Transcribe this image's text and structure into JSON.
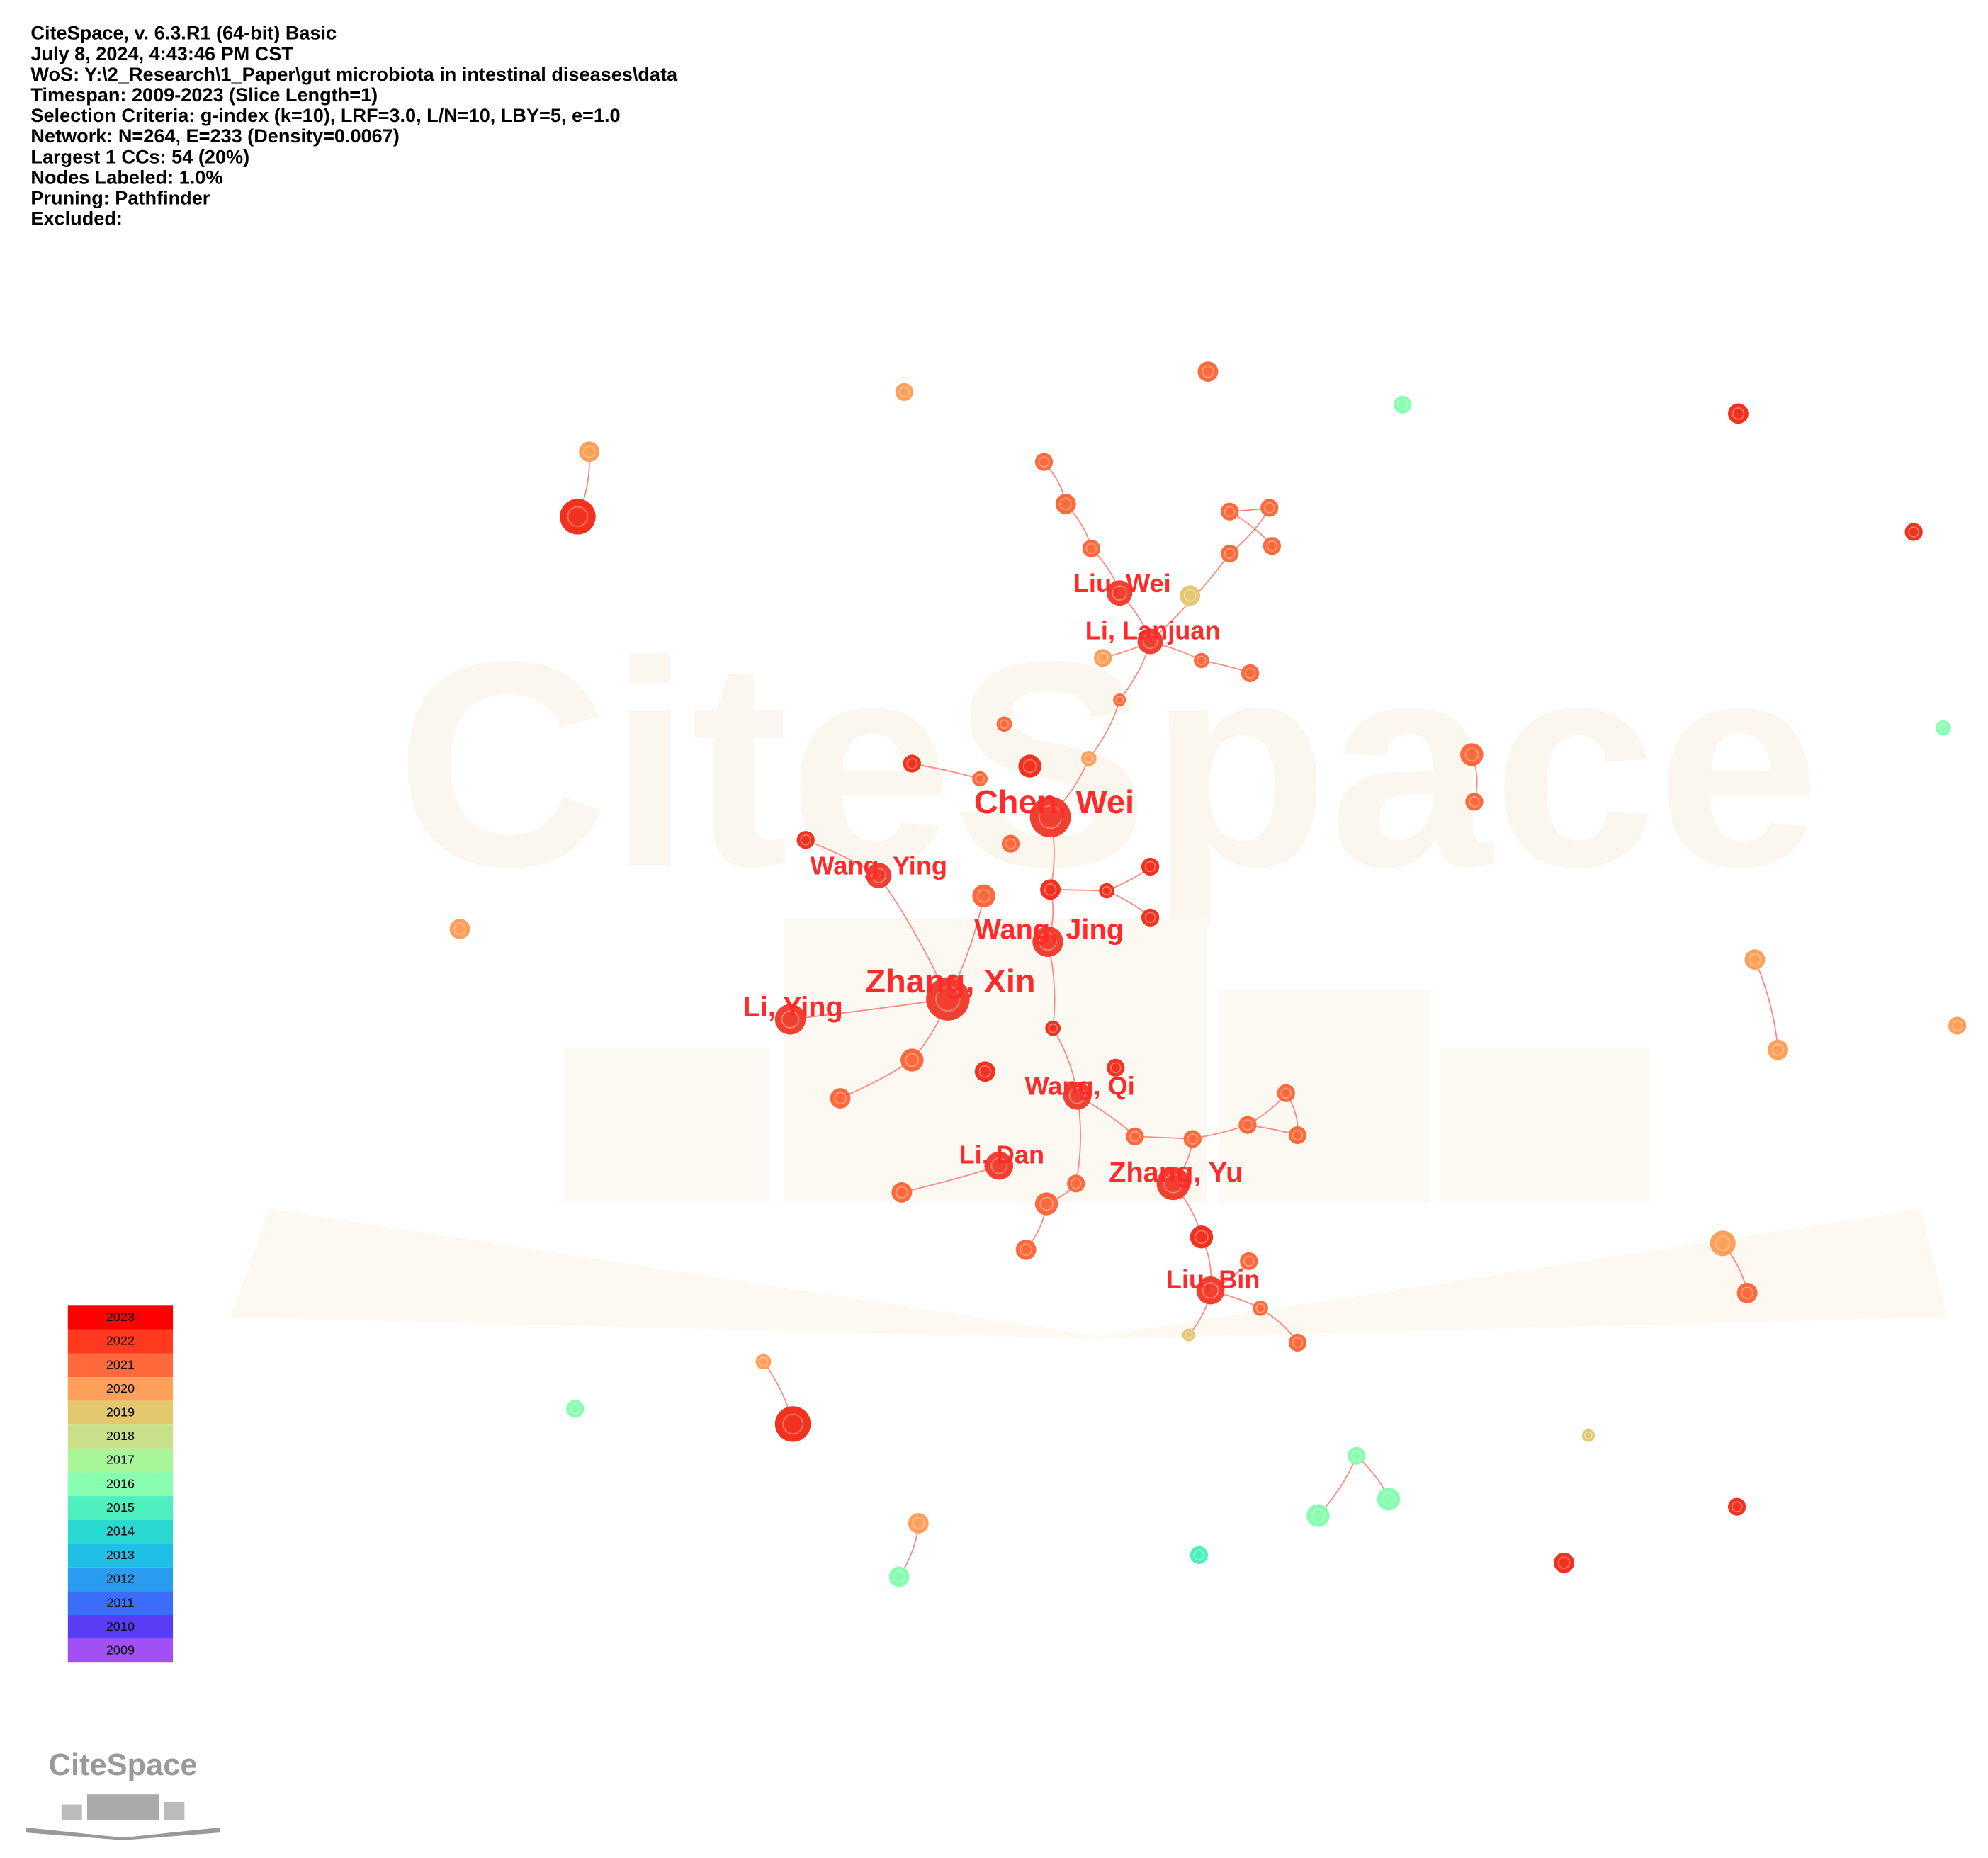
{
  "header": {
    "lines": [
      "CiteSpace, v. 6.3.R1 (64-bit) Basic",
      "July 8, 2024, 4:43:46 PM CST",
      "WoS: Y:\\2_Research\\1_Paper\\gut microbiota in intestinal diseases\\data",
      "Timespan: 2009-2023 (Slice Length=1)",
      "Selection Criteria: g-index (k=10), LRF=3.0, L/N=10, LBY=5, e=1.0",
      "Network: N=264, E=233 (Density=0.0067)",
      "Largest 1 CCs: 54 (20%)",
      "Nodes Labeled: 1.0%",
      "Pruning: Pathfinder",
      "Excluded:"
    ]
  },
  "watermark": "CiteSpace",
  "nodes": [
    {
      "label": "Liu, Wei"
    },
    {
      "label": "Li, Lanjuan"
    },
    {
      "label": "Chen, Wei"
    },
    {
      "label": "Wang, Ying"
    },
    {
      "label": "Wang, Jing"
    },
    {
      "label": "Zhang, Xin"
    },
    {
      "label": "Li, Ying"
    },
    {
      "label": "Wang, Qi"
    },
    {
      "label": "Li, Dan"
    },
    {
      "label": "Zhang, Yu"
    },
    {
      "label": "Liu, Bin"
    }
  ],
  "legend": {
    "years": [
      "2023",
      "2022",
      "2021",
      "2020",
      "2019",
      "2018",
      "2017",
      "2016",
      "2015",
      "2014",
      "2013",
      "2012",
      "2011",
      "2010",
      "2009"
    ]
  },
  "logo": "CiteSpace"
}
